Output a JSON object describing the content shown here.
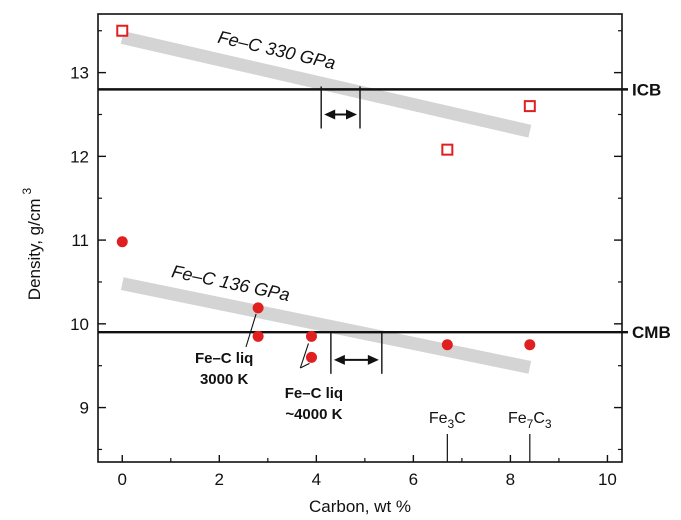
{
  "chart_data": {
    "type": "scatter",
    "xlabel": "Carbon, wt %",
    "ylabel": "Density, g/cm",
    "ylabel_sup": "3",
    "xlim": [
      -0.5,
      10.3
    ],
    "ylim": [
      8.35,
      13.7
    ],
    "xticks": [
      0,
      2,
      4,
      6,
      8,
      10
    ],
    "yticks": [
      9,
      10,
      11,
      12,
      13
    ],
    "grid": false,
    "reference_lines": [
      {
        "name": "ICB",
        "y": 12.8
      },
      {
        "name": "CMB",
        "y": 9.9
      }
    ],
    "bands": [
      {
        "label": "Fe–C 330 GPa",
        "x": [
          0,
          8.4
        ],
        "y": [
          13.42,
          12.3
        ]
      },
      {
        "label": "Fe–C 136 GPa",
        "x": [
          0,
          8.4
        ],
        "y": [
          10.48,
          9.48
        ]
      }
    ],
    "series": [
      {
        "marker": "open-square",
        "color": "#e02020",
        "points": [
          {
            "x": 0,
            "y": 13.5
          },
          {
            "x": 6.7,
            "y": 12.08
          },
          {
            "x": 8.4,
            "y": 12.6
          }
        ]
      },
      {
        "marker": "filled-circle",
        "color": "#e02020",
        "points": [
          {
            "x": 0,
            "y": 10.98
          },
          {
            "x": 2.8,
            "y": 10.19
          },
          {
            "x": 2.8,
            "y": 9.85
          },
          {
            "x": 3.9,
            "y": 9.85
          },
          {
            "x": 3.9,
            "y": 9.6
          },
          {
            "x": 6.7,
            "y": 9.75
          },
          {
            "x": 8.4,
            "y": 9.75
          }
        ]
      }
    ],
    "ranges": [
      {
        "x": [
          4.1,
          4.9
        ],
        "y": 12.5
      },
      {
        "x": [
          4.3,
          5.35
        ],
        "y": 9.57
      }
    ],
    "annotations": [
      {
        "lines": [
          "Fe–C liq",
          "3000 K"
        ]
      },
      {
        "lines": [
          "Fe–C liq",
          "~4000 K"
        ]
      }
    ],
    "compositions": [
      {
        "x": 6.7,
        "base": "Fe",
        "sub1": "3",
        "mid": "C",
        "sub2": ""
      },
      {
        "x": 8.4,
        "base": "Fe",
        "sub1": "7",
        "mid": "C",
        "sub2": "3"
      }
    ]
  }
}
